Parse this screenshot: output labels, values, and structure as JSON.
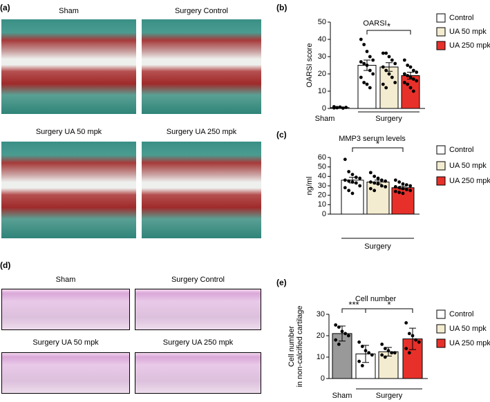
{
  "panels": {
    "a": "(a)",
    "b": "(b)",
    "c": "(c)",
    "d": "(d)",
    "e": "(e)",
    "a_images": [
      "Sham",
      "Surgery Control",
      "Surgery UA 50 mpk",
      "Surgery UA 250 mpk"
    ],
    "d_images": [
      "Sham",
      "Surgery Control",
      "Surgery UA 50 mpk",
      "Surgery UA 250 mpk"
    ]
  },
  "chart_data": [
    {
      "type": "bar",
      "title": "OARSI",
      "ylabel": [
        "OARSI score"
      ],
      "categories": [
        "Sham",
        null,
        null,
        null
      ],
      "group_label": "Surgery",
      "values": [
        0.5,
        25,
        24,
        19
      ],
      "errors": [
        0.3,
        3,
        2.5,
        2
      ],
      "colors": [
        "#ffffff",
        "#ffffff",
        "#f3ecd0",
        "#e8302a"
      ],
      "points": [
        [
          0.3,
          0.5,
          0.8,
          0.2,
          0.6,
          1,
          0.4
        ],
        [
          40,
          37,
          33,
          30,
          28,
          27,
          26,
          25,
          22,
          20,
          18,
          15,
          14,
          12
        ],
        [
          32,
          32,
          30,
          28,
          26,
          24,
          22,
          20,
          18,
          15,
          14,
          12
        ],
        [
          28,
          25,
          24,
          22,
          21,
          20,
          19,
          18,
          17,
          16,
          15,
          14,
          12,
          10
        ]
      ],
      "ylim": [
        0,
        50
      ],
      "yticks": [
        0,
        10,
        20,
        30,
        40,
        50
      ],
      "significance": [
        {
          "from": 1,
          "to": 3,
          "label": "*"
        }
      ],
      "legend": [
        {
          "name": "Control",
          "color": "#ffffff"
        },
        {
          "name": "UA 50 mpk",
          "color": "#f3ecd0"
        },
        {
          "name": "UA 250 mpk",
          "color": "#e8302a"
        }
      ]
    },
    {
      "type": "bar",
      "title": "MMP3 serum levels",
      "ylabel": [
        "ng/ml"
      ],
      "categories": [
        null,
        null,
        null
      ],
      "group_label": "Surgery",
      "values": [
        36,
        34,
        28
      ],
      "errors": [
        3,
        2,
        1.5
      ],
      "colors": [
        "#ffffff",
        "#f3ecd0",
        "#e8302a"
      ],
      "points": [
        [
          58,
          45,
          42,
          39,
          38,
          36,
          35,
          34,
          33,
          30,
          28,
          25,
          22
        ],
        [
          44,
          40,
          38,
          36,
          35,
          34,
          33,
          32,
          30,
          29,
          27,
          25
        ],
        [
          36,
          34,
          32,
          31,
          30,
          29,
          28,
          27,
          26,
          25,
          24,
          23,
          22
        ]
      ],
      "ylim": [
        0,
        60
      ],
      "yticks": [
        0,
        10,
        20,
        30,
        40,
        50,
        60
      ],
      "significance": [
        {
          "from": 0,
          "to": 2,
          "label": "*"
        }
      ],
      "legend": [
        {
          "name": "Control",
          "color": "#ffffff"
        },
        {
          "name": "UA 50 mpk",
          "color": "#f3ecd0"
        },
        {
          "name": "UA 250 mpk",
          "color": "#e8302a"
        }
      ]
    },
    {
      "type": "bar",
      "title": "Cell number",
      "ylabel": [
        "Cell number",
        "in non-calcified cartilage"
      ],
      "categories": [
        "Sham",
        null,
        null,
        null
      ],
      "group_label": "Surgery",
      "values": [
        21,
        11.5,
        12.5,
        18.5
      ],
      "errors": [
        3.5,
        4,
        2,
        5
      ],
      "colors": [
        "#999999",
        "#ffffff",
        "#f3ecd0",
        "#e8302a"
      ],
      "points": [
        [
          25,
          24,
          22,
          21,
          20,
          18,
          16
        ],
        [
          17,
          15,
          13,
          12,
          11,
          8,
          6
        ],
        [
          16,
          14,
          13,
          12,
          12,
          11,
          10
        ],
        [
          26,
          21,
          20,
          18,
          17,
          14,
          12
        ]
      ],
      "ylim": [
        0,
        30
      ],
      "yticks": [
        0,
        10,
        20,
        30
      ],
      "significance": [
        {
          "from": 0,
          "to": 1,
          "label": "***"
        },
        {
          "from": 1,
          "to": 3,
          "label": "*"
        }
      ],
      "legend": [
        {
          "name": "Control",
          "color": "#ffffff"
        },
        {
          "name": "UA 50 mpk",
          "color": "#f3ecd0"
        },
        {
          "name": "UA 250 mpk",
          "color": "#e8302a"
        }
      ]
    }
  ]
}
